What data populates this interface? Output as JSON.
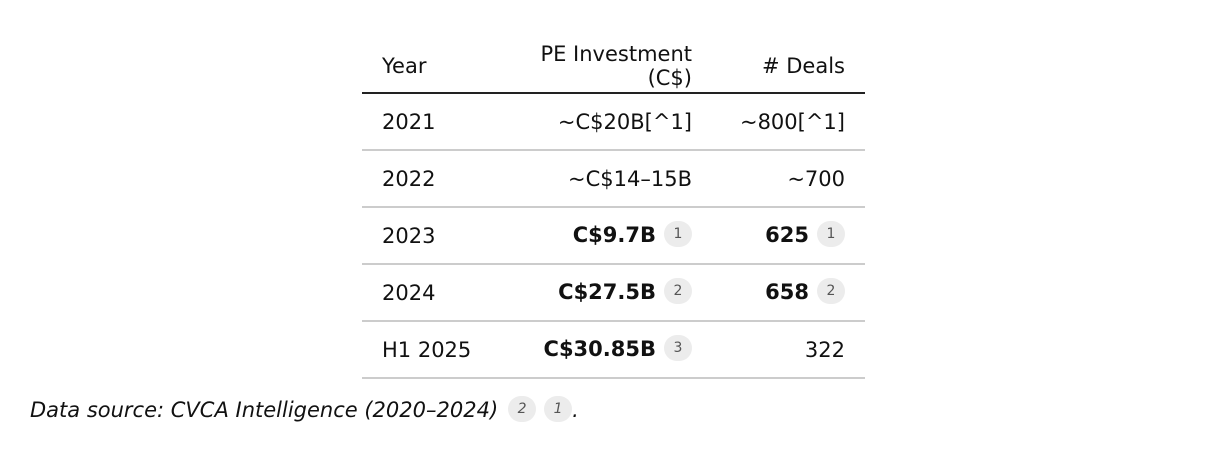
{
  "table": {
    "headers": {
      "year": "Year",
      "investment": "PE Investment (C$)",
      "deals": "# Deals"
    },
    "rows": [
      {
        "year": "2021",
        "investment": "~C$20B[^1]",
        "investment_bold": false,
        "investment_cite": "",
        "deals": "~800[^1]",
        "deals_bold": false,
        "deals_cite": ""
      },
      {
        "year": "2022",
        "investment": "~C$14–15B",
        "investment_bold": false,
        "investment_cite": "",
        "deals": "~700",
        "deals_bold": false,
        "deals_cite": ""
      },
      {
        "year": "2023",
        "investment": "C$9.7B",
        "investment_bold": true,
        "investment_cite": "1",
        "deals": "625",
        "deals_bold": true,
        "deals_cite": "1"
      },
      {
        "year": "2024",
        "investment": "C$27.5B",
        "investment_bold": true,
        "investment_cite": "2",
        "deals": "658",
        "deals_bold": true,
        "deals_cite": "2"
      },
      {
        "year": "H1 2025",
        "investment": "C$30.85B",
        "investment_bold": true,
        "investment_cite": "3",
        "deals": "322",
        "deals_bold": false,
        "deals_cite": ""
      }
    ]
  },
  "source": {
    "text": "Data source: CVCA Intelligence (2020–2024)",
    "citations": [
      "2",
      "1"
    ],
    "suffix": "."
  }
}
